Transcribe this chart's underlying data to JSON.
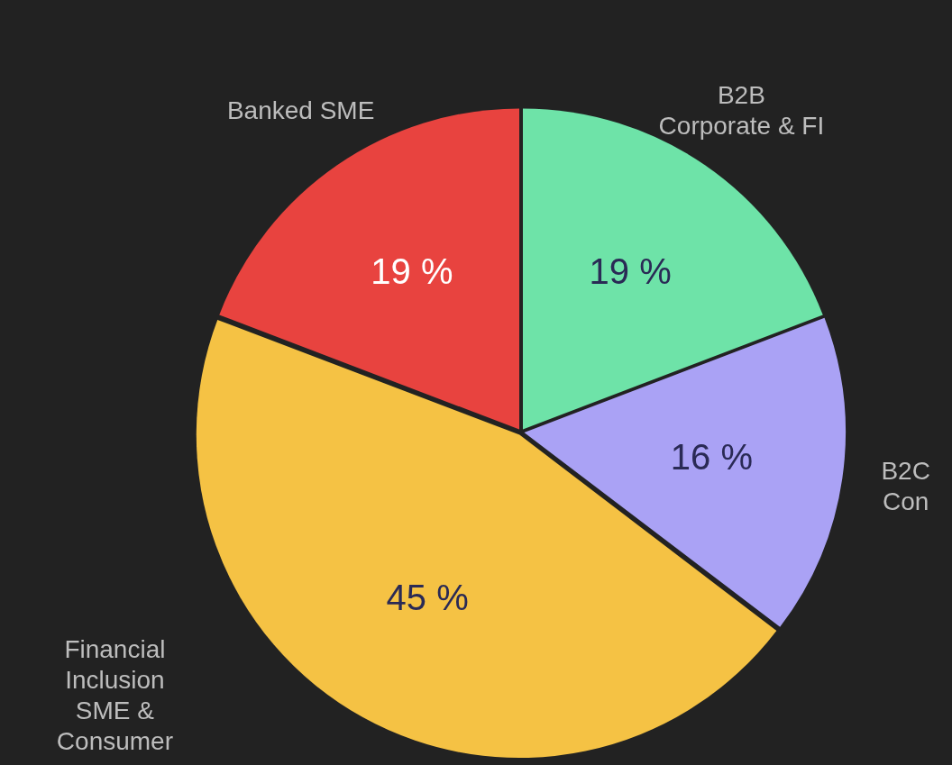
{
  "chart_data": {
    "type": "pie",
    "categories": [
      "B2B\nCorporate & FI",
      "B2C\nCon",
      "Financial\nInclusion\nSME &\nConsumer",
      "Banked SME"
    ],
    "values": [
      19,
      16,
      45,
      19
    ],
    "colors": [
      "#6ee3a8",
      "#aaa2f5",
      "#f5c244",
      "#e8433f"
    ],
    "value_labels": [
      "19 %",
      "16 %",
      "45 %",
      "19 %"
    ],
    "legend": false
  }
}
